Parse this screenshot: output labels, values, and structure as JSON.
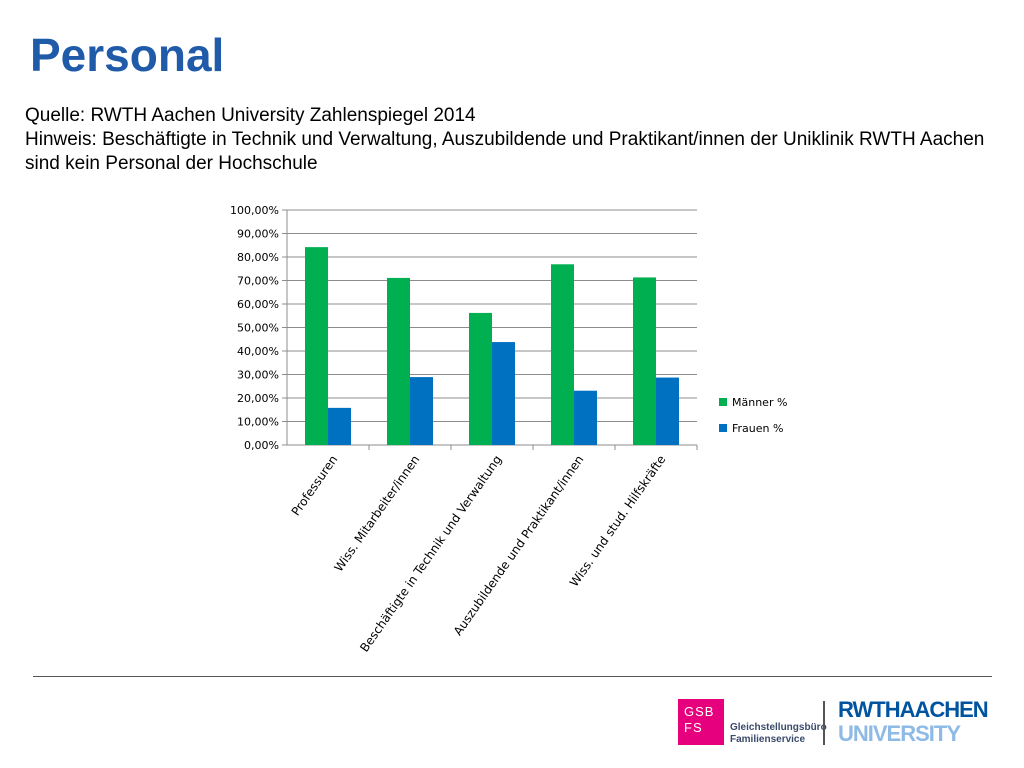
{
  "page": {
    "title": "Personal",
    "source_line": "Quelle: RWTH Aachen University Zahlenspiegel 2014",
    "note_line": "Hinweis: Beschäftigte in Technik und Verwaltung, Auszubildende und Praktikant/innen der Uniklinik RWTH Aachen sind kein Personal der Hochschule"
  },
  "chart_data": {
    "type": "bar",
    "categories": [
      "Professuren",
      "Wiss. Mitarbeiter/innen",
      "Beschäftigte in Technik und Verwaltung",
      "Auszubildende und Praktikant/innen",
      "Wiss. und stud. Hilfskräfte"
    ],
    "series": [
      {
        "name": "Männer %",
        "values": [
          84.2,
          71.1,
          56.2,
          76.9,
          71.3
        ],
        "color": "#00b050"
      },
      {
        "name": "Frauen %",
        "values": [
          15.8,
          28.9,
          43.8,
          23.1,
          28.7
        ],
        "color": "#0070c0"
      }
    ],
    "ylim": [
      0,
      100
    ],
    "yticks": [
      "0,00%",
      "10,00%",
      "20,00%",
      "30,00%",
      "40,00%",
      "50,00%",
      "60,00%",
      "70,00%",
      "80,00%",
      "90,00%",
      "100,00%"
    ],
    "grid": true,
    "legend": "right"
  },
  "footer": {
    "gsb_line1": "GSB",
    "gsb_line2": "FS",
    "gsb_name1": "Gleichstellungsbüro",
    "gsb_name2": "Familienservice",
    "rwth_line1": "RWTHAACHEN",
    "rwth_line2": "UNIVERSITY"
  }
}
